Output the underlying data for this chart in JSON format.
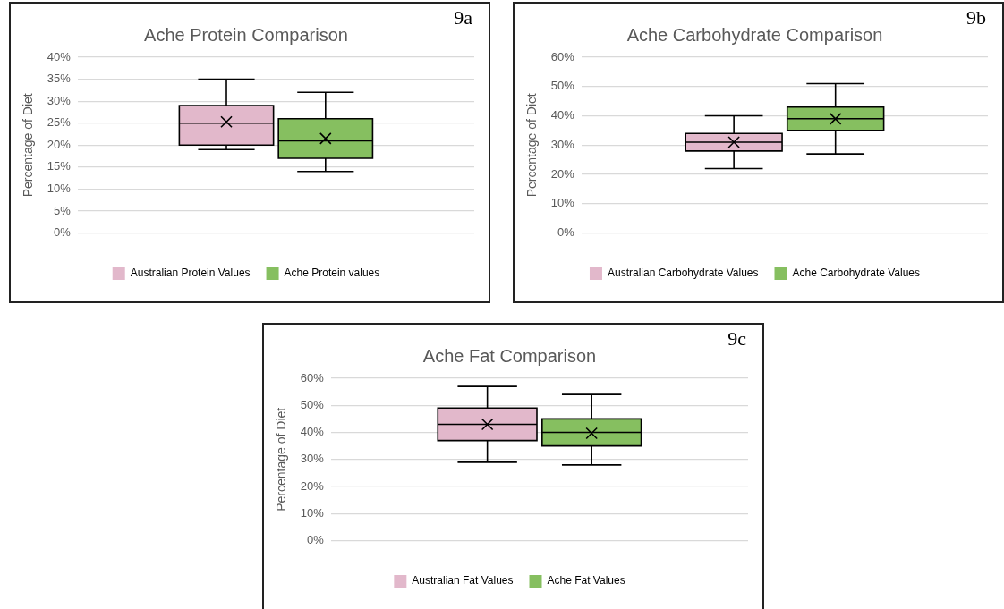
{
  "chart_data": [
    {
      "type": "box",
      "title": "Ache Protein Comparison",
      "ylabel": "Percentage of Diet",
      "annotations": [
        "9a"
      ],
      "categories": [
        null
      ],
      "ylim": [
        0,
        40
      ],
      "yticks": [
        {
          "value": 0,
          "label": "0%"
        },
        {
          "value": 5,
          "label": "5%"
        },
        {
          "value": 10,
          "label": "10%"
        },
        {
          "value": 15,
          "label": "15%"
        },
        {
          "value": 20,
          "label": "20%"
        },
        {
          "value": 25,
          "label": "25%"
        },
        {
          "value": 30,
          "label": "30%"
        },
        {
          "value": 35,
          "label": "35%"
        },
        {
          "value": 40,
          "label": "40%"
        }
      ],
      "grid": "y",
      "legend": "bottom",
      "series": [
        {
          "name": "Australian Protein Values",
          "color": "#e2b8cb",
          "boxes": [
            {
              "low": 19,
              "q1": 20,
              "median": 25,
              "q3": 29,
              "high": 35,
              "mean": 25.3
            }
          ]
        },
        {
          "name": "Ache Protein values",
          "color": "#86bf60",
          "boxes": [
            {
              "low": 14,
              "q1": 17,
              "median": 21,
              "q3": 26,
              "high": 32,
              "mean": 21.5
            }
          ]
        }
      ]
    },
    {
      "type": "box",
      "title": "Ache Carbohydrate Comparison",
      "ylabel": "Percentage of Diet",
      "annotations": [
        "9b"
      ],
      "categories": [
        null
      ],
      "ylim": [
        0,
        60
      ],
      "yticks": [
        {
          "value": 0,
          "label": "0%"
        },
        {
          "value": 10,
          "label": "10%"
        },
        {
          "value": 20,
          "label": "20%"
        },
        {
          "value": 30,
          "label": "30%"
        },
        {
          "value": 40,
          "label": "40%"
        },
        {
          "value": 50,
          "label": "50%"
        },
        {
          "value": 60,
          "label": "60%"
        }
      ],
      "grid": "y",
      "legend": "bottom",
      "series": [
        {
          "name": "Australian Carbohydrate Values",
          "color": "#e2b8cb",
          "boxes": [
            {
              "low": 22,
              "q1": 28,
              "median": 31,
              "q3": 34,
              "high": 40,
              "mean": 31
            }
          ]
        },
        {
          "name": "Ache Carbohydrate Values",
          "color": "#86bf60",
          "boxes": [
            {
              "low": 27,
              "q1": 35,
              "median": 39,
              "q3": 43,
              "high": 51,
              "mean": 39
            }
          ]
        }
      ]
    },
    {
      "type": "box",
      "title": "Ache Fat Comparison",
      "ylabel": "Percentage of Diet",
      "annotations": [
        "9c"
      ],
      "categories": [
        null
      ],
      "ylim": [
        0,
        60
      ],
      "yticks": [
        {
          "value": 0,
          "label": "0%"
        },
        {
          "value": 10,
          "label": "10%"
        },
        {
          "value": 20,
          "label": "20%"
        },
        {
          "value": 30,
          "label": "30%"
        },
        {
          "value": 40,
          "label": "40%"
        },
        {
          "value": 50,
          "label": "50%"
        },
        {
          "value": 60,
          "label": "60%"
        }
      ],
      "grid": "y",
      "legend": "bottom",
      "series": [
        {
          "name": "Australian Fat Values",
          "color": "#e2b8cb",
          "boxes": [
            {
              "low": 29,
              "q1": 37,
              "median": 43,
              "q3": 49,
              "high": 57,
              "mean": 43
            }
          ]
        },
        {
          "name": "Ache Fat Values",
          "color": "#86bf60",
          "boxes": [
            {
              "low": 28,
              "q1": 35,
              "median": 40,
              "q3": 45,
              "high": 54,
              "mean": 39.7
            }
          ]
        }
      ]
    }
  ]
}
